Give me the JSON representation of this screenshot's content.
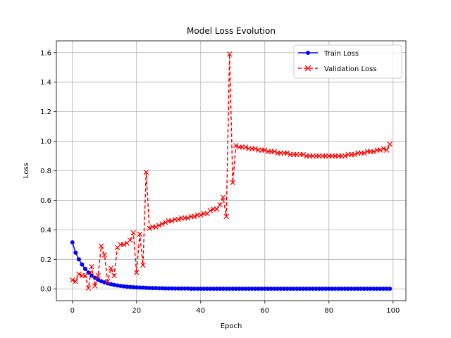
{
  "chart_data": {
    "type": "line",
    "title": "Model Loss Evolution",
    "xlabel": "Epoch",
    "ylabel": "Loss",
    "xlim": [
      -5,
      104
    ],
    "ylim": [
      -0.08,
      1.68
    ],
    "xticks": [
      0,
      20,
      40,
      60,
      80,
      100
    ],
    "yticks": [
      0.0,
      0.2,
      0.4,
      0.6,
      0.8,
      1.0,
      1.2,
      1.4,
      1.6
    ],
    "grid": true,
    "legend_position": "top-right",
    "series": [
      {
        "name": "Train Loss",
        "color": "#0000ff",
        "linestyle": "solid",
        "marker": "circle",
        "x": [
          0,
          1,
          2,
          3,
          4,
          5,
          6,
          7,
          8,
          9,
          10,
          11,
          12,
          13,
          14,
          15,
          16,
          17,
          18,
          19,
          20,
          21,
          22,
          23,
          24,
          25,
          26,
          27,
          28,
          29,
          30,
          31,
          32,
          33,
          34,
          35,
          36,
          37,
          38,
          39,
          40,
          41,
          42,
          43,
          44,
          45,
          46,
          47,
          48,
          49,
          50,
          51,
          52,
          53,
          54,
          55,
          56,
          57,
          58,
          59,
          60,
          61,
          62,
          63,
          64,
          65,
          66,
          67,
          68,
          69,
          70,
          71,
          72,
          73,
          74,
          75,
          76,
          77,
          78,
          79,
          80,
          81,
          82,
          83,
          84,
          85,
          86,
          87,
          88,
          89,
          90,
          91,
          92,
          93,
          94,
          95,
          96,
          97,
          98,
          99
        ],
        "values": [
          0.315,
          0.245,
          0.2,
          0.165,
          0.135,
          0.11,
          0.09,
          0.075,
          0.062,
          0.052,
          0.044,
          0.037,
          0.032,
          0.027,
          0.023,
          0.02,
          0.017,
          0.015,
          0.013,
          0.011,
          0.01,
          0.009,
          0.008,
          0.007,
          0.006,
          0.005,
          0.005,
          0.004,
          0.004,
          0.003,
          0.003,
          0.003,
          0.002,
          0.002,
          0.002,
          0.002,
          0.002,
          0.001,
          0.001,
          0.001,
          0.001,
          0.001,
          0.001,
          0.001,
          0.001,
          0.001,
          0.001,
          0.001,
          0.001,
          0.001,
          0.001,
          0.001,
          0.001,
          0.001,
          0.001,
          0.001,
          0.001,
          0.001,
          0.001,
          0.001,
          0.001,
          0.001,
          0.001,
          0.001,
          0.001,
          0.001,
          0.001,
          0.001,
          0.001,
          0.001,
          0.001,
          0.001,
          0.001,
          0.001,
          0.001,
          0.001,
          0.001,
          0.001,
          0.001,
          0.001,
          0.001,
          0.001,
          0.001,
          0.001,
          0.001,
          0.001,
          0.001,
          0.001,
          0.001,
          0.001,
          0.001,
          0.001,
          0.001,
          0.001,
          0.001,
          0.001,
          0.001,
          0.001,
          0.001,
          0.001
        ]
      },
      {
        "name": "Validation Loss",
        "color": "#ff0000",
        "linestyle": "dashed",
        "marker": "x",
        "x": [
          0,
          1,
          2,
          3,
          4,
          5,
          6,
          7,
          8,
          9,
          10,
          11,
          12,
          13,
          14,
          15,
          16,
          17,
          18,
          19,
          20,
          21,
          22,
          23,
          24,
          25,
          26,
          27,
          28,
          29,
          30,
          31,
          32,
          33,
          34,
          35,
          36,
          37,
          38,
          39,
          40,
          41,
          42,
          43,
          44,
          45,
          46,
          47,
          48,
          49,
          50,
          51,
          52,
          53,
          54,
          55,
          56,
          57,
          58,
          59,
          60,
          61,
          62,
          63,
          64,
          65,
          66,
          67,
          68,
          69,
          70,
          71,
          72,
          73,
          74,
          75,
          76,
          77,
          78,
          79,
          80,
          81,
          82,
          83,
          84,
          85,
          86,
          87,
          88,
          89,
          90,
          91,
          92,
          93,
          94,
          95,
          96,
          97,
          98,
          99
        ],
        "values": [
          0.06,
          0.05,
          0.1,
          0.09,
          0.09,
          0.005,
          0.15,
          0.02,
          0.09,
          0.29,
          0.23,
          0.05,
          0.14,
          0.09,
          0.28,
          0.3,
          0.3,
          0.31,
          0.33,
          0.38,
          0.11,
          0.37,
          0.16,
          0.79,
          0.41,
          0.42,
          0.42,
          0.43,
          0.44,
          0.45,
          0.46,
          0.46,
          0.47,
          0.47,
          0.48,
          0.48,
          0.48,
          0.49,
          0.49,
          0.5,
          0.5,
          0.51,
          0.51,
          0.53,
          0.54,
          0.54,
          0.57,
          0.62,
          0.49,
          1.59,
          0.72,
          0.97,
          0.96,
          0.96,
          0.96,
          0.95,
          0.95,
          0.95,
          0.94,
          0.94,
          0.94,
          0.93,
          0.93,
          0.93,
          0.92,
          0.92,
          0.92,
          0.92,
          0.91,
          0.91,
          0.91,
          0.91,
          0.91,
          0.9,
          0.9,
          0.9,
          0.9,
          0.9,
          0.9,
          0.9,
          0.9,
          0.9,
          0.9,
          0.9,
          0.9,
          0.9,
          0.91,
          0.91,
          0.91,
          0.92,
          0.92,
          0.92,
          0.93,
          0.93,
          0.93,
          0.94,
          0.94,
          0.95,
          0.94,
          0.98
        ]
      }
    ]
  }
}
